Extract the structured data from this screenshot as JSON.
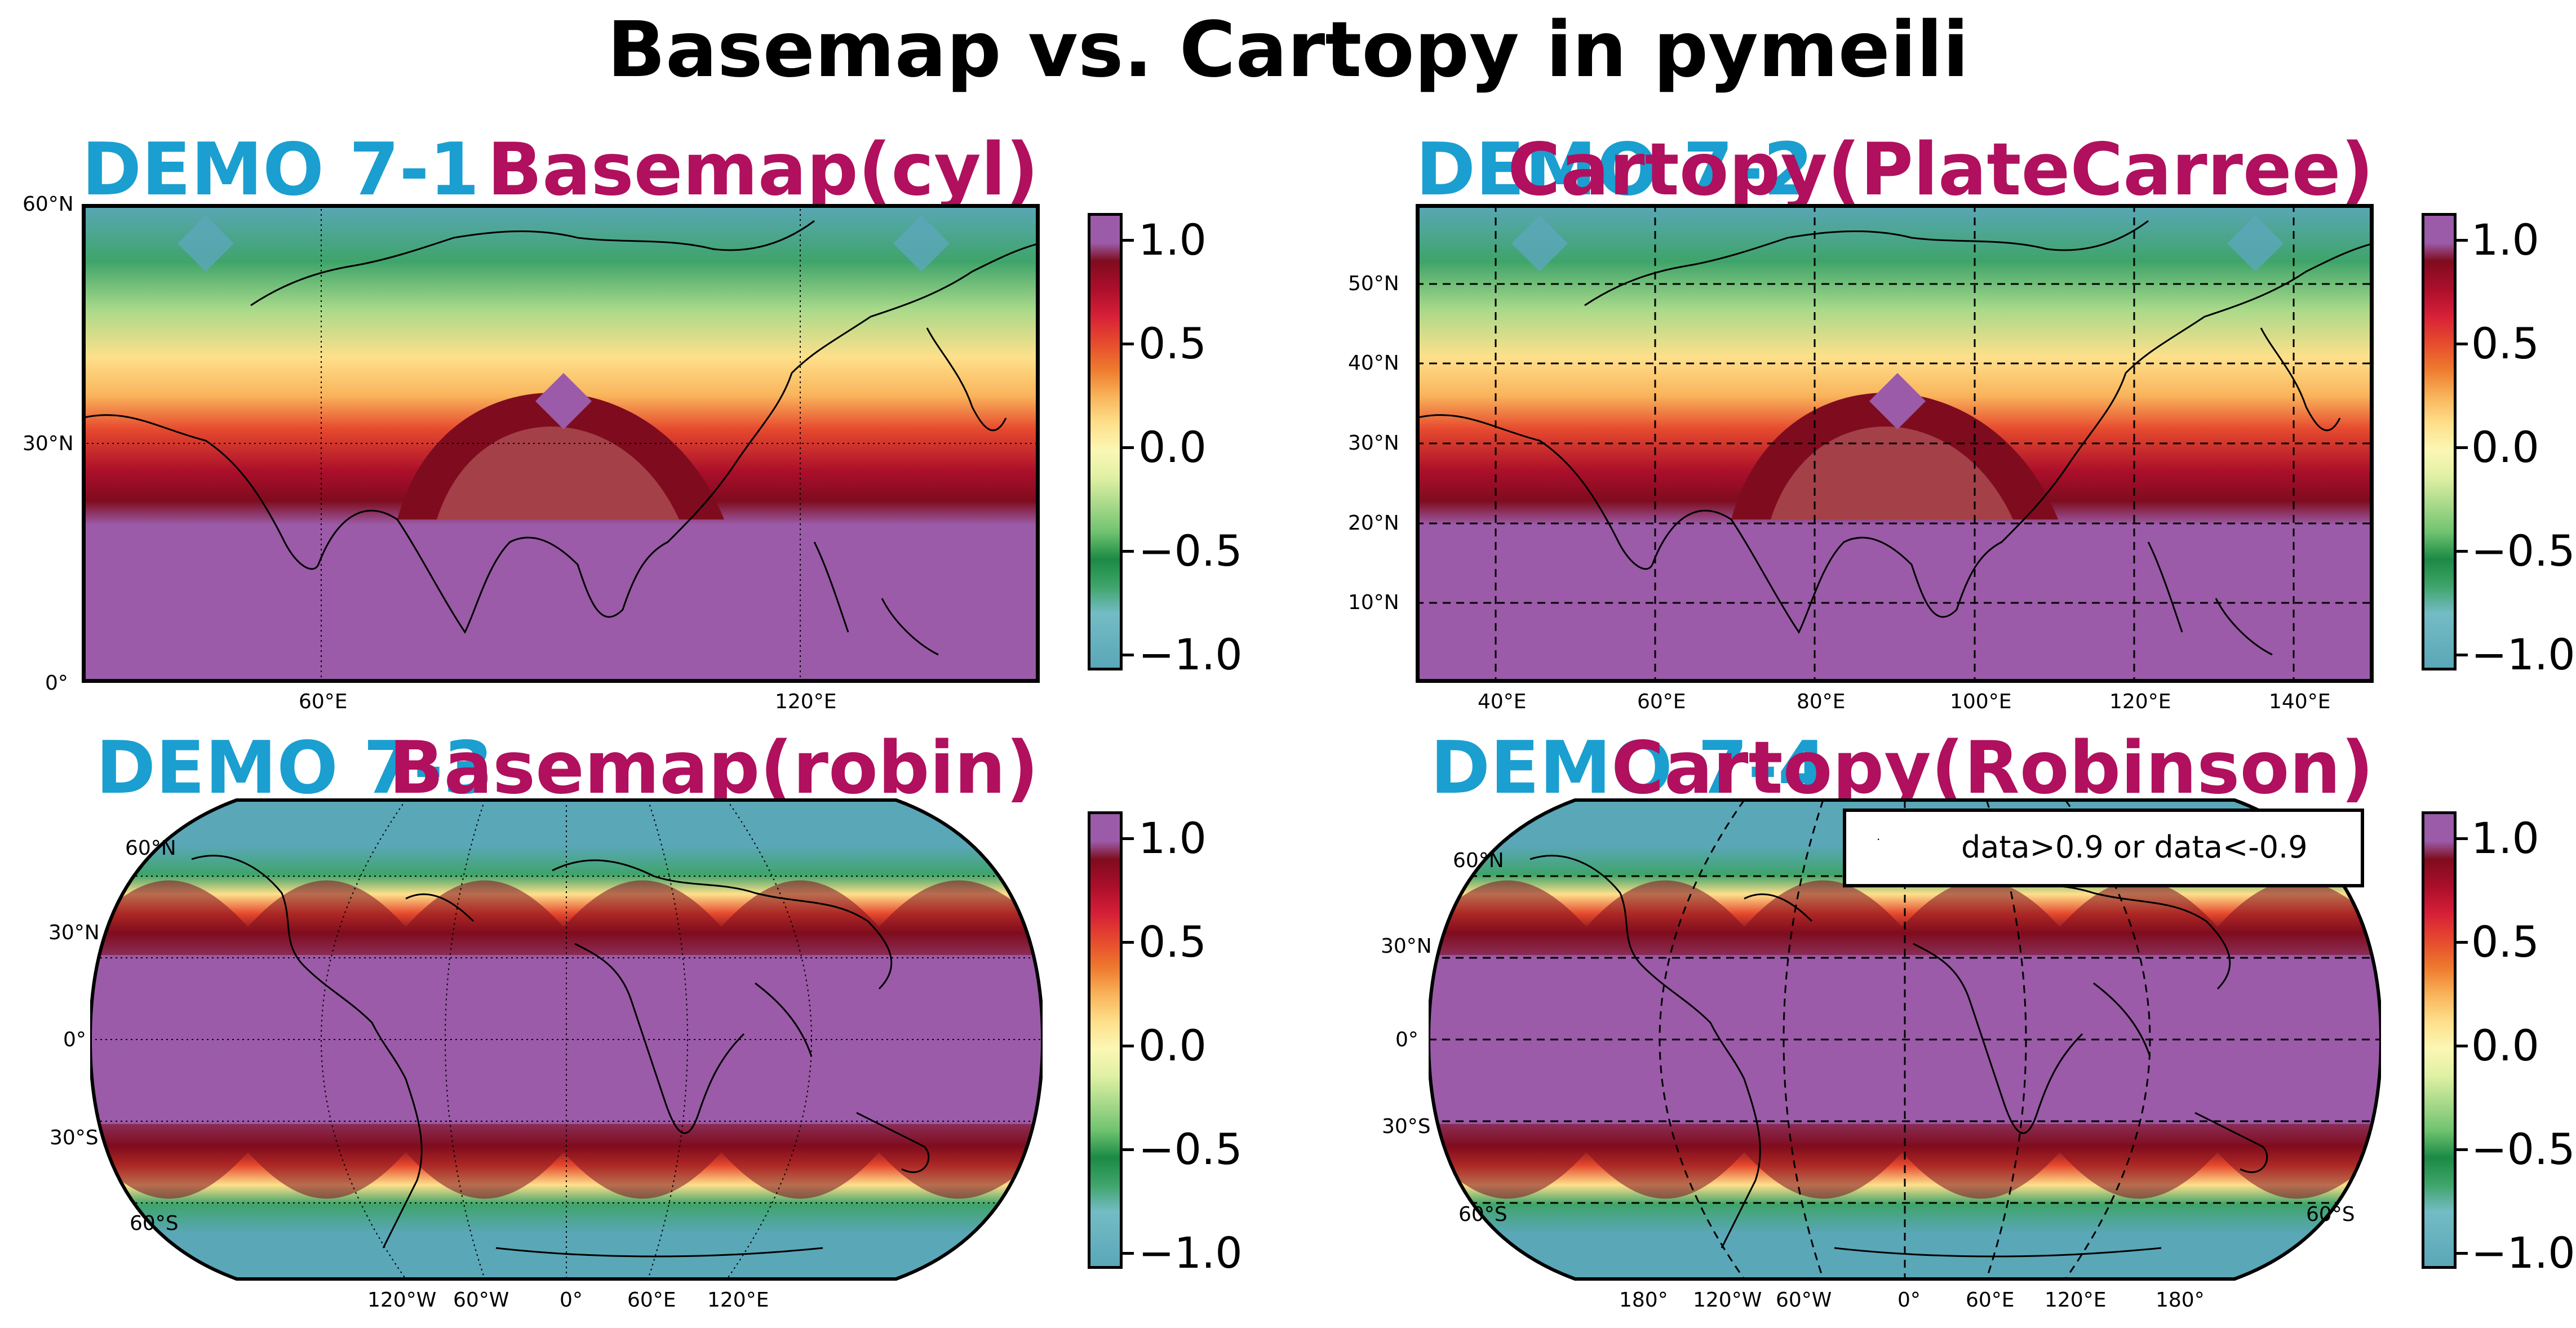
{
  "figure": {
    "title": "Basemap vs. Cartopy in pymeili",
    "colors": {
      "demo_label": "#1a9fd0",
      "subtitle": "#b0105e",
      "ocean_purple": "#9b5ba8"
    },
    "colorbar": {
      "ticks": [
        "1.0",
        "0.5",
        "0.0",
        "−0.5",
        "−1.0"
      ],
      "range": [
        -1.1,
        1.1
      ],
      "colors": [
        "#5aa7b8",
        "#74bcc4",
        "#3fa46a",
        "#1b8a45",
        "#6fc370",
        "#a8d98a",
        "#dff0a3",
        "#fbf7b5",
        "#fee08b",
        "#f9b45b",
        "#ee7a2e",
        "#e64a2e",
        "#d61f38",
        "#aa0e2a",
        "#7f0c1e",
        "#9b5ba8"
      ]
    }
  },
  "panels": [
    {
      "demo": "DEMO 7-1",
      "subtitle": "Basemap(cyl)",
      "lat_labels": [
        "60°N",
        "30°N",
        "0°"
      ],
      "lon_labels": [
        "60°E",
        "120°E"
      ]
    },
    {
      "demo": "DEMO 7-2",
      "subtitle": "Cartopy(PlateCarree)",
      "lat_labels": [
        "50°N",
        "40°N",
        "30°N",
        "20°N",
        "10°N"
      ],
      "lon_labels": [
        "40°E",
        "60°E",
        "80°E",
        "100°E",
        "120°E",
        "140°E"
      ]
    },
    {
      "demo": "DEMO 7-3",
      "subtitle": "Basemap(robin)",
      "lat_labels": [
        "60°N",
        "30°N",
        "0°",
        "30°S",
        "60°S"
      ],
      "lon_labels": [
        "120°W",
        "60°W",
        "0°",
        "60°E",
        "120°E"
      ]
    },
    {
      "demo": "DEMO 7-4",
      "subtitle": "Cartopy(Robinson)",
      "lat_labels": [
        "60°N",
        "30°N",
        "0°",
        "30°S",
        "60°S"
      ],
      "lat_labels_right": [
        "60°S"
      ],
      "lon_labels": [
        "180°",
        "120°W",
        "60°W",
        "0°",
        "60°E",
        "120°E",
        "180°"
      ],
      "legend": "data>0.9 or data<-0.9"
    }
  ]
}
